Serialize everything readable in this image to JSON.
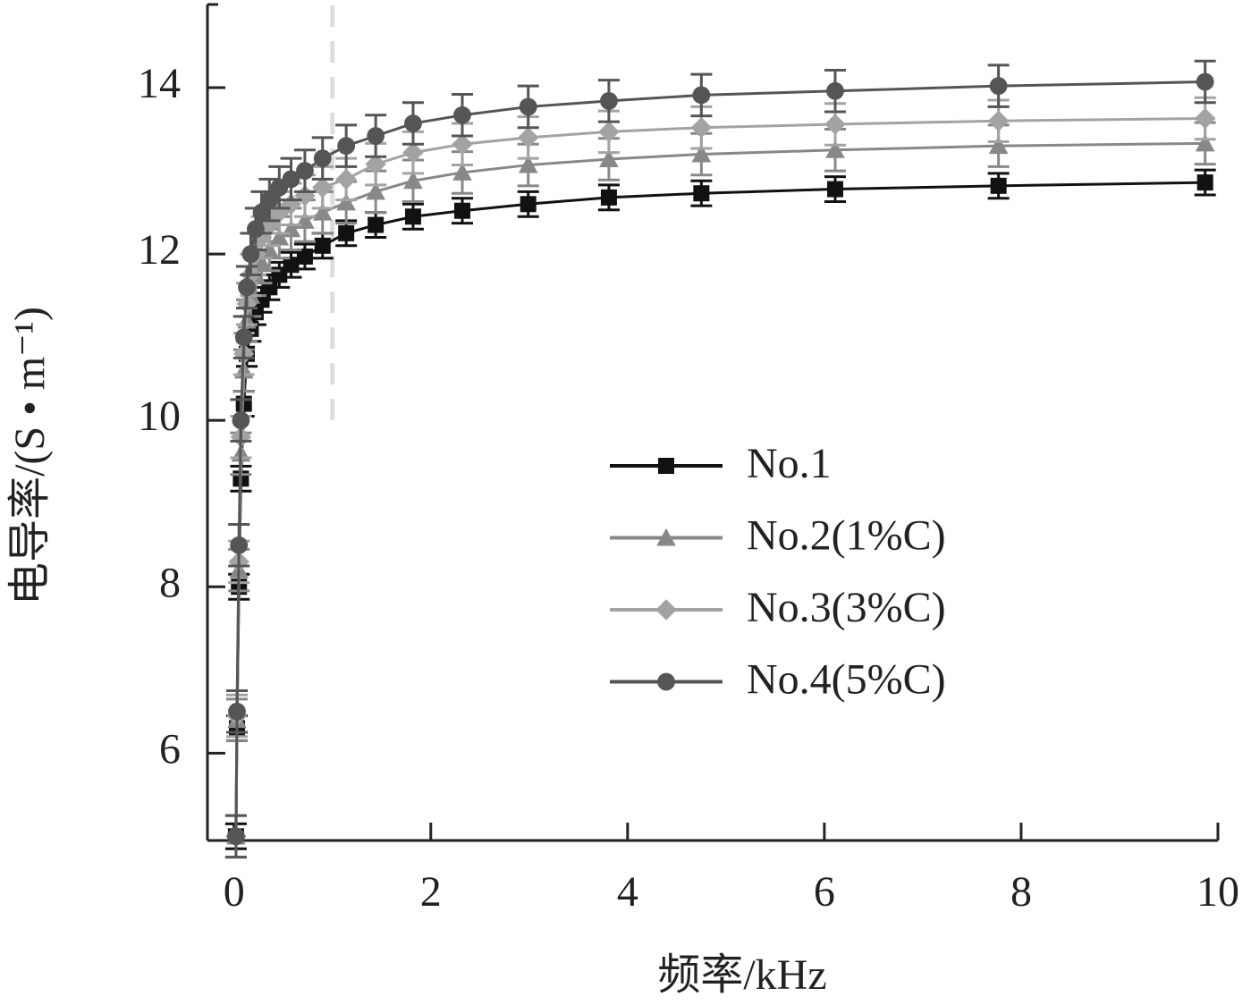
{
  "chart_data": {
    "type": "line",
    "x_label": "频率/kHz",
    "y_label": "电导率/(S • m⁻¹)",
    "x": [
      0.02,
      0.03,
      0.05,
      0.07,
      0.1,
      0.13,
      0.17,
      0.22,
      0.28,
      0.36,
      0.46,
      0.58,
      0.72,
      0.9,
      1.14,
      1.44,
      1.82,
      2.32,
      2.99,
      3.81,
      4.75,
      6.11,
      7.77,
      9.87
    ],
    "series": [
      {
        "name": "No.1",
        "color": "#111111",
        "marker": "square",
        "error": 0.15,
        "values": [
          5.0,
          6.3,
          8.0,
          9.3,
          10.2,
          10.8,
          11.1,
          11.3,
          11.45,
          11.6,
          11.75,
          11.87,
          11.97,
          12.1,
          12.25,
          12.35,
          12.45,
          12.52,
          12.6,
          12.68,
          12.73,
          12.78,
          12.82,
          12.86
        ]
      },
      {
        "name": "No.2(1%C)",
        "color": "#888888",
        "marker": "triangle",
        "error": 0.25,
        "values": [
          5.0,
          6.4,
          8.2,
          9.6,
          10.6,
          11.2,
          11.5,
          11.75,
          11.9,
          12.05,
          12.2,
          12.3,
          12.4,
          12.5,
          12.62,
          12.75,
          12.88,
          12.98,
          13.07,
          13.14,
          13.2,
          13.25,
          13.3,
          13.33
        ]
      },
      {
        "name": "No.3(3%C)",
        "color": "#a3a3a3",
        "marker": "diamond",
        "error": 0.25,
        "values": [
          5.0,
          6.45,
          8.3,
          9.8,
          10.8,
          11.4,
          11.75,
          12.0,
          12.2,
          12.35,
          12.5,
          12.6,
          12.7,
          12.8,
          12.9,
          13.08,
          13.22,
          13.32,
          13.4,
          13.47,
          13.52,
          13.56,
          13.6,
          13.63
        ]
      },
      {
        "name": "No.4(5%C)",
        "color": "#555555",
        "marker": "circle",
        "error": 0.25,
        "values": [
          5.0,
          6.5,
          8.5,
          10.0,
          11.0,
          11.6,
          12.0,
          12.3,
          12.5,
          12.65,
          12.8,
          12.9,
          13.0,
          13.15,
          13.3,
          13.42,
          13.57,
          13.67,
          13.77,
          13.84,
          13.91,
          13.96,
          14.02,
          14.07
        ]
      }
    ],
    "xlim": [
      -0.27,
      10
    ],
    "xticks": [
      0,
      2,
      4,
      6,
      8,
      10
    ],
    "ylim": [
      4.95,
      15
    ],
    "yticks": [
      6,
      8,
      10,
      12,
      14
    ],
    "vline_x": 1,
    "vline_y": [
      10,
      15
    ],
    "legend": "right"
  }
}
